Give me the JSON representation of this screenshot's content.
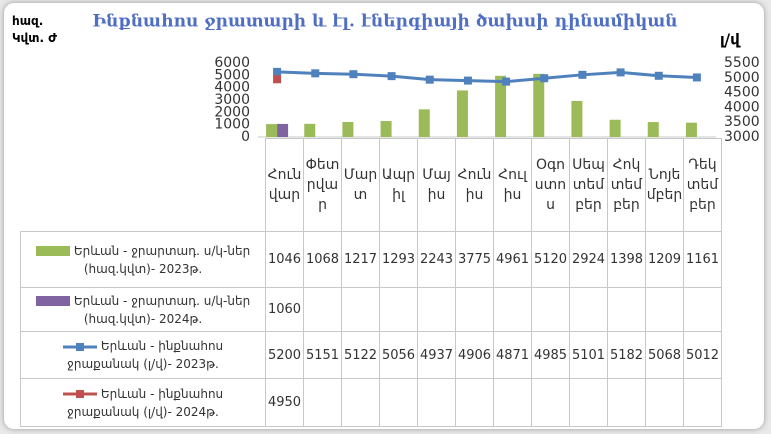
{
  "chart_data": {
    "type": "bar",
    "title": "Ինքնահոս ջրատարի և էլ. էներգիայի ծախսի դինամիկան",
    "y_label": "հազ. Կվտ. Ժ",
    "y2_label": "լ/վ",
    "categories": [
      "Հունվար",
      "Փետրվար",
      "Մարտ",
      "Ապրիլ",
      "Մայիս",
      "Հունիս",
      "Հուլիս",
      "Օգոստոս",
      "Սեպտեմբեր",
      "Հոկտեմբեր",
      "Նոյեմբեր",
      "Դեկտեմբեր"
    ],
    "ylim": [
      0,
      6000
    ],
    "yticks": [
      0,
      1000,
      2000,
      3000,
      4000,
      5000,
      6000
    ],
    "y2lim": [
      3000,
      5500
    ],
    "y2ticks": [
      3000,
      3500,
      4000,
      4500,
      5000,
      5500
    ],
    "series": [
      {
        "name": "Երևան - ջրարտադ. ս/կ-ներ (հազ.կվտ)- 2023թ.",
        "type": "bar",
        "color": "#9bbb59",
        "values": [
          1046,
          1068,
          1217,
          1293,
          2243,
          3775,
          4961,
          5120,
          2924,
          1398,
          1209,
          1161
        ]
      },
      {
        "name": "Երևան - ջրարտադ. ս/կ-ներ (հազ.կվտ)- 2024թ.",
        "type": "bar",
        "color": "#8064a2",
        "values": [
          1060,
          null,
          null,
          null,
          null,
          null,
          null,
          null,
          null,
          null,
          null,
          null
        ]
      },
      {
        "name": "Երևան - ինքնահոս ջրաքանակ (լ/վ)- 2023թ.",
        "type": "line",
        "axis": "y2",
        "color": "#4f81bd",
        "values": [
          5200,
          5151,
          5122,
          5056,
          4937,
          4906,
          4871,
          4985,
          5101,
          5182,
          5068,
          5012
        ]
      },
      {
        "name": "Երևան - ինքնահոս ջրաքանակ (լ/վ)- 2024թ.",
        "type": "line",
        "axis": "y2",
        "color": "#c0504d",
        "values": [
          4950,
          null,
          null,
          null,
          null,
          null,
          null,
          null,
          null,
          null,
          null,
          null
        ]
      }
    ]
  }
}
